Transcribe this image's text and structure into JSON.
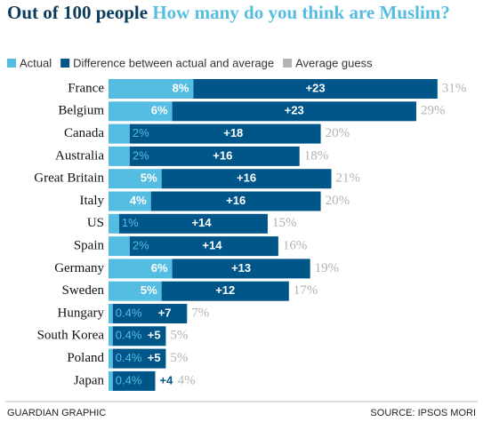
{
  "chart_data": {
    "type": "stacked-bar-horizontal",
    "title": "Out of 100 people",
    "subtitle": "How many do you think are Muslim?",
    "categories": [
      "France",
      "Belgium",
      "Canada",
      "Australia",
      "Great Britain",
      "Italy",
      "US",
      "Spain",
      "Germany",
      "Sweden",
      "Hungary",
      "South Korea",
      "Poland",
      "Japan"
    ],
    "series": [
      {
        "name": "Actual",
        "color": "#56bde2",
        "values": [
          8,
          6,
          2,
          2,
          5,
          4,
          1,
          2,
          6,
          5,
          0.4,
          0.4,
          0.4,
          0.4
        ],
        "value_labels": [
          "8%",
          "6%",
          "2%",
          "2%",
          "5%",
          "4%",
          "1%",
          "2%",
          "6%",
          "5%",
          "0.4%",
          "0.4%",
          "0.4%",
          "0.4%"
        ]
      },
      {
        "name": "Difference between actual and average",
        "color": "#005689",
        "values": [
          23,
          23,
          18,
          16,
          16,
          16,
          14,
          14,
          13,
          12,
          7,
          5,
          5,
          4
        ],
        "value_labels": [
          "+23",
          "+23",
          "+18",
          "+16",
          "+16",
          "+16",
          "+14",
          "+14",
          "+13",
          "+12",
          "+7",
          "+5",
          "+5",
          "+4"
        ]
      },
      {
        "name": "Average guess",
        "color": "#b3b3b3",
        "values": [
          31,
          29,
          20,
          18,
          21,
          20,
          15,
          16,
          19,
          17,
          7,
          5,
          5,
          4
        ],
        "value_labels": [
          "31%",
          "29%",
          "20%",
          "18%",
          "21%",
          "20%",
          "15%",
          "16%",
          "19%",
          "17%",
          "7%",
          "5%",
          "5%",
          "4%"
        ]
      }
    ],
    "credit": "GUARDIAN GRAPHIC",
    "source": "SOURCE: IPSOS MORI"
  }
}
